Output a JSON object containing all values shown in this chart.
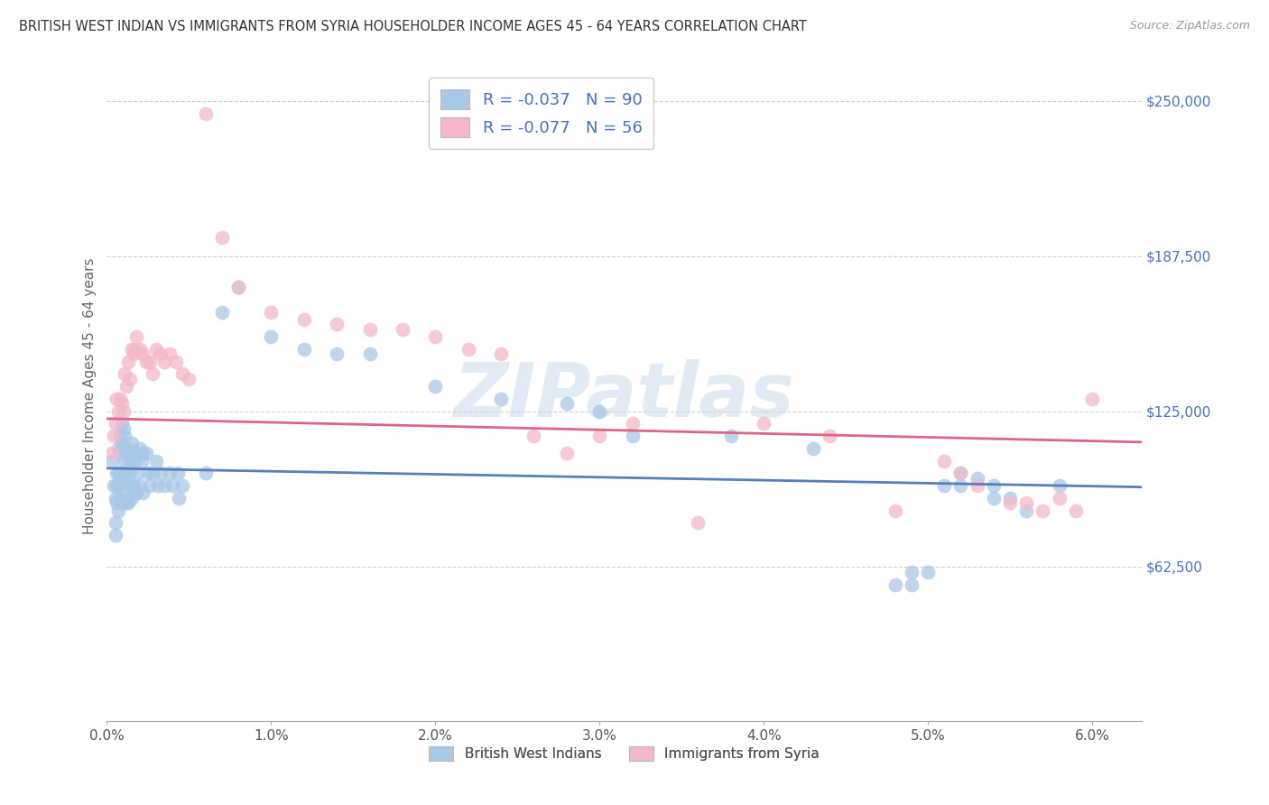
{
  "title": "BRITISH WEST INDIAN VS IMMIGRANTS FROM SYRIA HOUSEHOLDER INCOME AGES 45 - 64 YEARS CORRELATION CHART",
  "source": "Source: ZipAtlas.com",
  "ylabel": "Householder Income Ages 45 - 64 years",
  "xlim": [
    0.0,
    0.063
  ],
  "ylim": [
    0,
    262500
  ],
  "yticks": [
    0,
    62500,
    125000,
    187500,
    250000
  ],
  "ytick_labels": [
    "",
    "$62,500",
    "$125,000",
    "$187,500",
    "$250,000"
  ],
  "xtick_labels": [
    "0.0%",
    "1.0%",
    "2.0%",
    "3.0%",
    "4.0%",
    "5.0%",
    "6.0%"
  ],
  "xticks": [
    0.0,
    0.01,
    0.02,
    0.03,
    0.04,
    0.05,
    0.06
  ],
  "watermark": "ZIPatlas",
  "legend_r1": "-0.037",
  "legend_n1": "90",
  "legend_r2": "-0.077",
  "legend_n2": "56",
  "color_blue": "#a8c8e8",
  "color_pink": "#f4b8c8",
  "color_blue_line": "#5580bb",
  "color_pink_line": "#dd6688",
  "color_title": "#333333",
  "color_ylabel": "#666666",
  "color_ytick_labels": "#4472c4",
  "color_legend_text": "#4472c4",
  "color_source": "#999999",
  "blue_intercept": 102000,
  "blue_slope": -120000,
  "pink_intercept": 122000,
  "pink_slope": -150000,
  "blue_x": [
    0.0003,
    0.0004,
    0.0005,
    0.0005,
    0.0005,
    0.0006,
    0.0006,
    0.0006,
    0.0007,
    0.0007,
    0.0007,
    0.0007,
    0.0008,
    0.0008,
    0.0008,
    0.0008,
    0.0009,
    0.0009,
    0.0009,
    0.0009,
    0.001,
    0.001,
    0.001,
    0.001,
    0.0011,
    0.0011,
    0.0011,
    0.0012,
    0.0012,
    0.0012,
    0.0013,
    0.0013,
    0.0013,
    0.0014,
    0.0014,
    0.0015,
    0.0015,
    0.0015,
    0.0016,
    0.0016,
    0.0017,
    0.0017,
    0.0018,
    0.0018,
    0.0019,
    0.002,
    0.002,
    0.0021,
    0.0022,
    0.0022,
    0.0024,
    0.0025,
    0.0026,
    0.0028,
    0.003,
    0.0031,
    0.0033,
    0.0035,
    0.0038,
    0.004,
    0.0043,
    0.0044,
    0.0046,
    0.006,
    0.007,
    0.008,
    0.01,
    0.012,
    0.014,
    0.016,
    0.02,
    0.024,
    0.028,
    0.03,
    0.032,
    0.038,
    0.043,
    0.048,
    0.049,
    0.051,
    0.052,
    0.053,
    0.054,
    0.055,
    0.056,
    0.049,
    0.05,
    0.052,
    0.054,
    0.058
  ],
  "blue_y": [
    105000,
    95000,
    90000,
    80000,
    75000,
    100000,
    95000,
    88000,
    110000,
    100000,
    95000,
    85000,
    115000,
    108000,
    100000,
    90000,
    120000,
    112000,
    100000,
    88000,
    118000,
    110000,
    100000,
    90000,
    115000,
    105000,
    95000,
    110000,
    100000,
    88000,
    108000,
    98000,
    88000,
    105000,
    95000,
    112000,
    102000,
    90000,
    108000,
    95000,
    105000,
    92000,
    108000,
    92000,
    100000,
    110000,
    95000,
    105000,
    108000,
    92000,
    108000,
    100000,
    95000,
    100000,
    105000,
    95000,
    100000,
    95000,
    100000,
    95000,
    100000,
    90000,
    95000,
    100000,
    165000,
    175000,
    155000,
    150000,
    148000,
    148000,
    135000,
    130000,
    128000,
    125000,
    115000,
    115000,
    110000,
    55000,
    60000,
    95000,
    100000,
    98000,
    95000,
    90000,
    85000,
    55000,
    60000,
    95000,
    90000,
    95000
  ],
  "pink_x": [
    0.0003,
    0.0004,
    0.0005,
    0.0006,
    0.0007,
    0.0008,
    0.0009,
    0.001,
    0.0011,
    0.0012,
    0.0013,
    0.0014,
    0.0015,
    0.0016,
    0.0017,
    0.0018,
    0.002,
    0.0022,
    0.0024,
    0.0026,
    0.0028,
    0.003,
    0.0032,
    0.0035,
    0.0038,
    0.0042,
    0.0046,
    0.005,
    0.006,
    0.007,
    0.008,
    0.01,
    0.012,
    0.014,
    0.016,
    0.018,
    0.02,
    0.022,
    0.024,
    0.026,
    0.028,
    0.03,
    0.032,
    0.036,
    0.04,
    0.044,
    0.048,
    0.051,
    0.052,
    0.053,
    0.055,
    0.056,
    0.057,
    0.058,
    0.059,
    0.06
  ],
  "pink_y": [
    108000,
    115000,
    120000,
    130000,
    125000,
    130000,
    128000,
    125000,
    140000,
    135000,
    145000,
    138000,
    150000,
    148000,
    150000,
    155000,
    150000,
    148000,
    145000,
    145000,
    140000,
    150000,
    148000,
    145000,
    148000,
    145000,
    140000,
    138000,
    245000,
    195000,
    175000,
    165000,
    162000,
    160000,
    158000,
    158000,
    155000,
    150000,
    148000,
    115000,
    108000,
    115000,
    120000,
    80000,
    120000,
    115000,
    85000,
    105000,
    100000,
    95000,
    88000,
    88000,
    85000,
    90000,
    85000,
    130000
  ]
}
